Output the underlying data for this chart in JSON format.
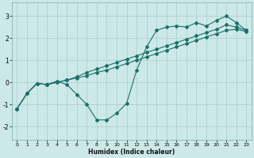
{
  "xlabel": "Humidex (Indice chaleur)",
  "bg_color": "#cde8e8",
  "line_color": "#1a7068",
  "xlim": [
    -0.5,
    23.5
  ],
  "ylim": [
    -2.6,
    3.6
  ],
  "xticks": [
    0,
    1,
    2,
    3,
    4,
    5,
    6,
    7,
    8,
    9,
    10,
    11,
    12,
    13,
    14,
    15,
    16,
    17,
    18,
    19,
    20,
    21,
    22,
    23
  ],
  "yticks": [
    -2,
    -1,
    0,
    1,
    2,
    3
  ],
  "line1_x": [
    0,
    1,
    2,
    3,
    4,
    5,
    6,
    7,
    8,
    9,
    10,
    11,
    12,
    13,
    14,
    15,
    16,
    17,
    18,
    19,
    20,
    21,
    22,
    23
  ],
  "line1_y": [
    -1.2,
    -0.5,
    -0.05,
    -0.1,
    0.0,
    0.1,
    0.2,
    0.3,
    0.45,
    0.55,
    0.7,
    0.85,
    1.0,
    1.15,
    1.3,
    1.45,
    1.6,
    1.75,
    1.9,
    2.05,
    2.2,
    2.35,
    2.4,
    2.3
  ],
  "line2_x": [
    0,
    1,
    2,
    3,
    4,
    5,
    6,
    7,
    8,
    9,
    10,
    11,
    12,
    13,
    14,
    15,
    16,
    17,
    18,
    19,
    20,
    21,
    22,
    23
  ],
  "line2_y": [
    -1.2,
    -0.5,
    -0.05,
    -0.1,
    0.0,
    0.1,
    0.25,
    0.45,
    0.6,
    0.75,
    0.9,
    1.05,
    1.2,
    1.35,
    1.5,
    1.65,
    1.8,
    1.95,
    2.1,
    2.25,
    2.4,
    2.6,
    2.5,
    2.35
  ],
  "line3_x": [
    0,
    1,
    2,
    3,
    4,
    5,
    6,
    7,
    8,
    9,
    10,
    11,
    12,
    13,
    14,
    15,
    16,
    17,
    18,
    19,
    20,
    21,
    22,
    23
  ],
  "line3_y": [
    -1.2,
    -0.5,
    -0.05,
    -0.1,
    0.05,
    -0.1,
    -0.55,
    -1.0,
    -1.7,
    -1.7,
    -1.4,
    -0.95,
    0.55,
    1.6,
    2.35,
    2.5,
    2.55,
    2.5,
    2.7,
    2.55,
    2.8,
    3.0,
    2.7,
    2.35
  ]
}
